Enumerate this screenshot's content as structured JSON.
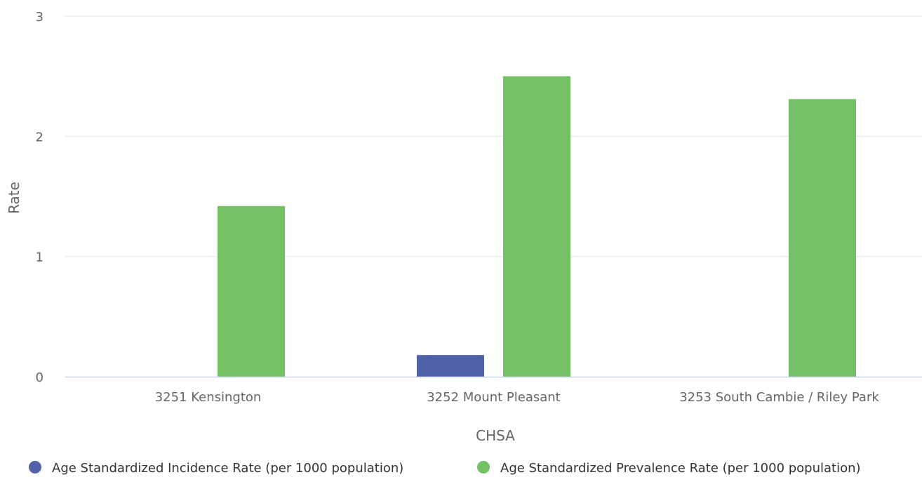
{
  "chart_data": {
    "type": "bar",
    "title": "",
    "xlabel": "CHSA",
    "ylabel": "Rate",
    "ylim": [
      0,
      3
    ],
    "yticks": [
      0,
      1,
      2,
      3
    ],
    "grid": true,
    "legend_position": "bottom",
    "categories": [
      "3251 Kensington",
      "3252 Mount Pleasant",
      "3253 South Cambie / Riley Park"
    ],
    "series": [
      {
        "name": "Age Standardized Incidence Rate (per 1000 population)",
        "color": "#5062a8",
        "values": [
          0,
          0.18,
          0
        ]
      },
      {
        "name": "Age Standardized Prevalence Rate (per 1000 population)",
        "color": "#74c064",
        "values": [
          1.42,
          2.5,
          2.31
        ]
      }
    ]
  }
}
